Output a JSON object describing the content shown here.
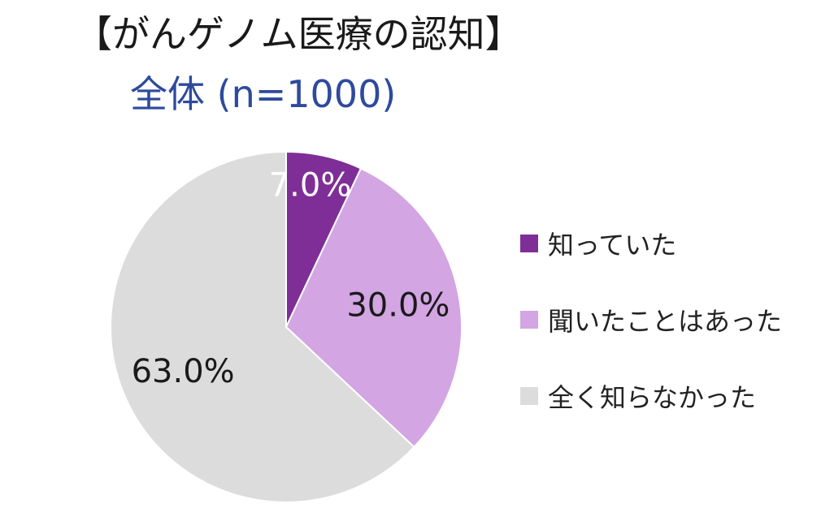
{
  "chart_data": {
    "type": "pie",
    "title": "【がんゲノム医療の認知】",
    "subtitle": "全体 (n=1000)",
    "categories": [
      "知っていた",
      "聞いたことはあった",
      "全く知らなかった"
    ],
    "values": [
      7.0,
      30.0,
      63.0
    ],
    "value_labels": [
      "7.0%",
      "30.0%",
      "63.0%"
    ],
    "colors": [
      "#7f2e97",
      "#d3a5e3",
      "#dcdcdc"
    ],
    "label_colors": [
      "#ffffff",
      "#1a1a1a",
      "#1a1a1a"
    ],
    "legend_position": "right",
    "start_angle": "top",
    "direction": "clockwise"
  },
  "styles": {
    "title_color": "#1a1a1a",
    "subtitle_color": "#2e4a9e"
  }
}
